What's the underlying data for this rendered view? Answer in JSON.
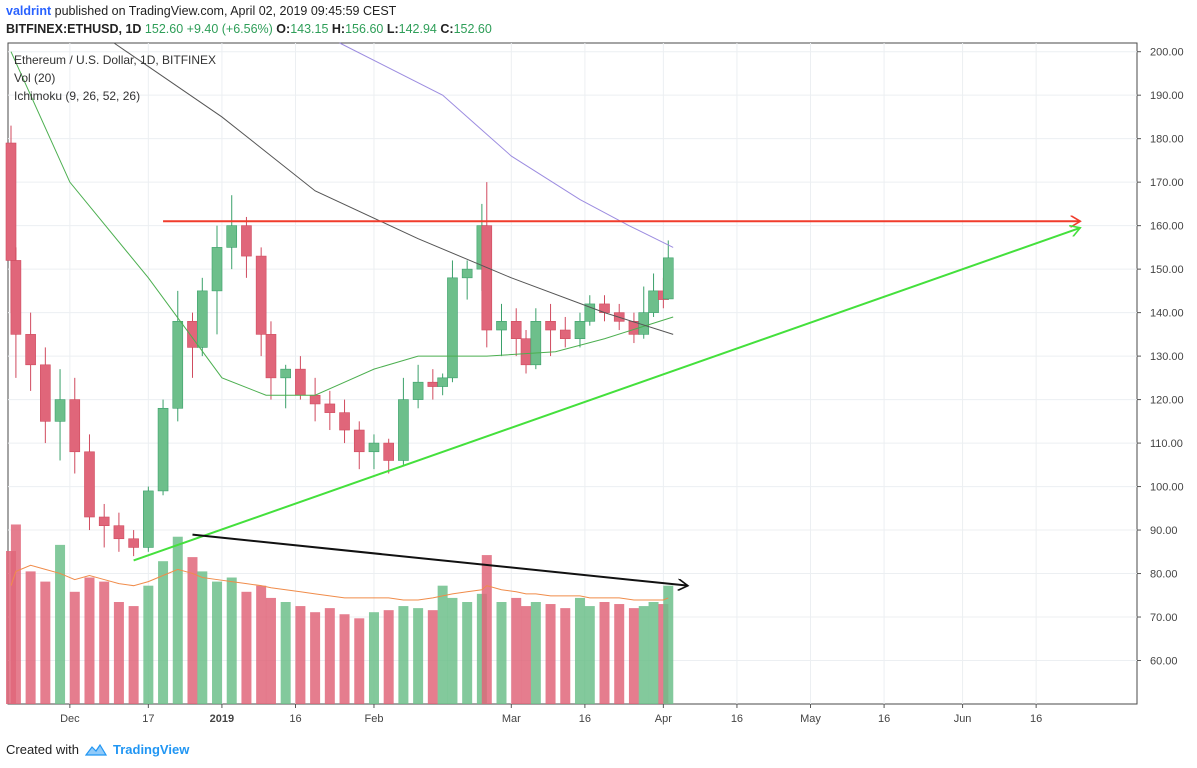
{
  "header": {
    "user": "valdrint",
    "published": "published on TradingView.com, April 02, 2019 09:45:59 CEST",
    "symbol": "BITFINEX:ETHUSD, 1D",
    "last": "152.60",
    "change": "+9.40 (+6.56%)",
    "o_label": "O:",
    "o": "143.15",
    "h_label": "H:",
    "h": "156.60",
    "l_label": "L:",
    "l": "142.94",
    "c_label": "C:",
    "c": "152.60"
  },
  "legend": {
    "title": "Ethereum / U.S. Dollar, 1D, BITFINEX",
    "vol": "Vol (20)",
    "ichimoku": "Ichimoku (9, 26, 52, 26)"
  },
  "footer": {
    "created_with": "Created with",
    "brand": "TradingView"
  },
  "colors": {
    "up": "#6dbf8b",
    "down": "#e0667a",
    "resistance": "#f03c2c",
    "support": "#44e03c",
    "volume_trend": "#111111"
  },
  "chart_data": {
    "type": "candlestick",
    "title": "Ethereum / U.S. Dollar, 1D, BITFINEX",
    "ylim": [
      50,
      202
    ],
    "y_ticks": [
      "200.00",
      "190.00",
      "180.00",
      "170.00",
      "160.00",
      "150.00",
      "140.00",
      "130.00",
      "120.00",
      "110.00",
      "100.00",
      "90.00",
      "80.00",
      "70.00",
      "60.00"
    ],
    "x_ticks": [
      "Dec",
      "17",
      "2019",
      "16",
      "Feb",
      "Mar",
      "16",
      "Apr",
      "16",
      "May",
      "16",
      "Jun",
      "16"
    ],
    "candles": [
      {
        "date": "2018-11-19",
        "o": 179,
        "h": 183,
        "l": 140,
        "c": 152
      },
      {
        "date": "2018-11-20",
        "o": 152,
        "h": 155,
        "l": 125,
        "c": 135
      },
      {
        "date": "2018-11-23",
        "o": 135,
        "h": 140,
        "l": 122,
        "c": 128
      },
      {
        "date": "2018-11-26",
        "o": 128,
        "h": 132,
        "l": 110,
        "c": 115
      },
      {
        "date": "2018-11-29",
        "o": 115,
        "h": 127,
        "l": 106,
        "c": 120
      },
      {
        "date": "2018-12-02",
        "o": 120,
        "h": 125,
        "l": 103,
        "c": 108
      },
      {
        "date": "2018-12-05",
        "o": 108,
        "h": 112,
        "l": 90,
        "c": 93
      },
      {
        "date": "2018-12-08",
        "o": 93,
        "h": 96,
        "l": 86,
        "c": 91
      },
      {
        "date": "2018-12-11",
        "o": 91,
        "h": 94,
        "l": 85,
        "c": 88
      },
      {
        "date": "2018-12-14",
        "o": 88,
        "h": 90,
        "l": 84,
        "c": 86
      },
      {
        "date": "2018-12-17",
        "o": 86,
        "h": 100,
        "l": 85,
        "c": 99
      },
      {
        "date": "2018-12-20",
        "o": 99,
        "h": 120,
        "l": 98,
        "c": 118
      },
      {
        "date": "2018-12-23",
        "o": 118,
        "h": 145,
        "l": 115,
        "c": 138
      },
      {
        "date": "2018-12-26",
        "o": 138,
        "h": 140,
        "l": 125,
        "c": 132
      },
      {
        "date": "2018-12-28",
        "o": 132,
        "h": 148,
        "l": 130,
        "c": 145
      },
      {
        "date": "2018-12-31",
        "o": 145,
        "h": 160,
        "l": 135,
        "c": 155
      },
      {
        "date": "2019-01-03",
        "o": 155,
        "h": 167,
        "l": 150,
        "c": 160
      },
      {
        "date": "2019-01-06",
        "o": 160,
        "h": 162,
        "l": 148,
        "c": 153
      },
      {
        "date": "2019-01-09",
        "o": 153,
        "h": 155,
        "l": 130,
        "c": 135
      },
      {
        "date": "2019-01-11",
        "o": 135,
        "h": 138,
        "l": 120,
        "c": 125
      },
      {
        "date": "2019-01-14",
        "o": 125,
        "h": 128,
        "l": 118,
        "c": 127
      },
      {
        "date": "2019-01-17",
        "o": 127,
        "h": 130,
        "l": 120,
        "c": 121
      },
      {
        "date": "2019-01-20",
        "o": 121,
        "h": 125,
        "l": 115,
        "c": 119
      },
      {
        "date": "2019-01-23",
        "o": 119,
        "h": 122,
        "l": 113,
        "c": 117
      },
      {
        "date": "2019-01-26",
        "o": 117,
        "h": 120,
        "l": 110,
        "c": 113
      },
      {
        "date": "2019-01-29",
        "o": 113,
        "h": 115,
        "l": 104,
        "c": 108
      },
      {
        "date": "2019-02-01",
        "o": 108,
        "h": 112,
        "l": 104,
        "c": 110
      },
      {
        "date": "2019-02-04",
        "o": 110,
        "h": 111,
        "l": 103,
        "c": 106
      },
      {
        "date": "2019-02-07",
        "o": 106,
        "h": 125,
        "l": 105,
        "c": 120
      },
      {
        "date": "2019-02-10",
        "o": 120,
        "h": 128,
        "l": 118,
        "c": 124
      },
      {
        "date": "2019-02-13",
        "o": 124,
        "h": 127,
        "l": 120,
        "c": 123
      },
      {
        "date": "2019-02-15",
        "o": 123,
        "h": 126,
        "l": 121,
        "c": 125
      },
      {
        "date": "2019-02-17",
        "o": 125,
        "h": 152,
        "l": 124,
        "c": 148
      },
      {
        "date": "2019-02-20",
        "o": 148,
        "h": 152,
        "l": 143,
        "c": 150
      },
      {
        "date": "2019-02-23",
        "o": 150,
        "h": 165,
        "l": 145,
        "c": 160
      },
      {
        "date": "2019-02-24",
        "o": 160,
        "h": 170,
        "l": 132,
        "c": 136
      },
      {
        "date": "2019-02-27",
        "o": 136,
        "h": 142,
        "l": 130,
        "c": 138
      },
      {
        "date": "2019-03-02",
        "o": 138,
        "h": 141,
        "l": 130,
        "c": 134
      },
      {
        "date": "2019-03-04",
        "o": 134,
        "h": 136,
        "l": 126,
        "c": 128
      },
      {
        "date": "2019-03-06",
        "o": 128,
        "h": 141,
        "l": 127,
        "c": 138
      },
      {
        "date": "2019-03-09",
        "o": 138,
        "h": 142,
        "l": 130,
        "c": 136
      },
      {
        "date": "2019-03-12",
        "o": 136,
        "h": 139,
        "l": 132,
        "c": 134
      },
      {
        "date": "2019-03-15",
        "o": 134,
        "h": 140,
        "l": 132,
        "c": 138
      },
      {
        "date": "2019-03-17",
        "o": 138,
        "h": 144,
        "l": 137,
        "c": 142
      },
      {
        "date": "2019-03-20",
        "o": 142,
        "h": 144,
        "l": 138,
        "c": 140
      },
      {
        "date": "2019-03-23",
        "o": 140,
        "h": 142,
        "l": 136,
        "c": 138
      },
      {
        "date": "2019-03-26",
        "o": 138,
        "h": 140,
        "l": 133,
        "c": 135
      },
      {
        "date": "2019-03-28",
        "o": 135,
        "h": 146,
        "l": 134,
        "c": 140
      },
      {
        "date": "2019-03-30",
        "o": 140,
        "h": 149,
        "l": 139,
        "c": 145
      },
      {
        "date": "2019-04-01",
        "o": 145,
        "h": 148,
        "l": 141,
        "c": 143
      },
      {
        "date": "2019-04-02",
        "o": 143.15,
        "h": 156.6,
        "l": 142.94,
        "c": 152.6
      }
    ],
    "volume": [
      75,
      88,
      65,
      60,
      78,
      55,
      62,
      60,
      50,
      48,
      58,
      70,
      82,
      72,
      65,
      60,
      62,
      55,
      58,
      52,
      50,
      48,
      45,
      47,
      44,
      42,
      45,
      46,
      48,
      47,
      46,
      58,
      52,
      50,
      54,
      73,
      50,
      52,
      48,
      50,
      49,
      47,
      52,
      48,
      50,
      49,
      47,
      48,
      50,
      49,
      58
    ],
    "volume_ma": [
      58,
      65,
      68,
      66,
      64,
      61,
      63,
      61,
      59,
      58,
      60,
      63,
      66,
      64,
      62,
      61,
      60,
      59,
      58,
      57,
      56,
      55,
      54,
      53,
      52,
      52,
      52,
      52,
      51,
      51,
      52,
      53,
      54,
      55,
      56,
      58,
      56,
      55,
      54,
      54,
      53,
      53,
      53,
      52,
      52,
      52,
      51,
      51,
      51,
      51,
      52
    ],
    "annotations": [
      {
        "type": "resistance",
        "from": {
          "date": "2018-12-20",
          "y": 161
        },
        "to": {
          "date": "2019-06-25",
          "y": 161
        }
      },
      {
        "type": "support",
        "from": {
          "date": "2018-12-14",
          "y": 83
        },
        "to": {
          "date": "2019-06-25",
          "y": 159.5
        }
      },
      {
        "type": "volume_trend",
        "from": {
          "date": "2018-12-26",
          "vol": 83
        },
        "to": {
          "date": "2019-04-06",
          "vol": 58
        }
      }
    ]
  }
}
